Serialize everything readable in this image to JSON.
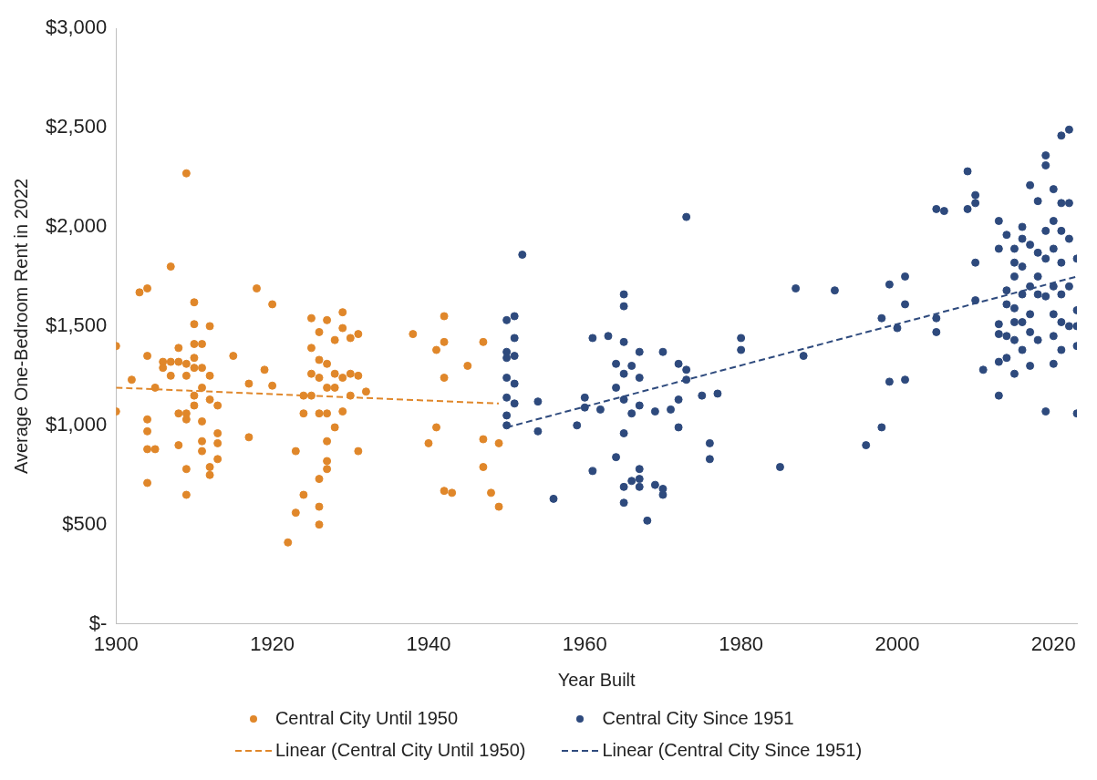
{
  "chart_data": {
    "type": "scatter",
    "xlabel": "Year Built",
    "ylabel": "Average One-Bedroom Rent in 2022",
    "xlim": [
      1900,
      2023
    ],
    "xticks": [
      1900,
      1920,
      1940,
      1960,
      1980,
      2000,
      2020
    ],
    "ylim": [
      0,
      3000
    ],
    "yticks": [
      {
        "value": 0,
        "label": "$-"
      },
      {
        "value": 500,
        "label": "$500"
      },
      {
        "value": 1000,
        "label": "$1,000"
      },
      {
        "value": 1500,
        "label": "$1,500"
      },
      {
        "value": 2000,
        "label": "$2,000"
      },
      {
        "value": 2500,
        "label": "$2,500"
      },
      {
        "value": 3000,
        "label": "$3,000"
      }
    ],
    "grid": false,
    "legend": "bottom",
    "marker": "circle",
    "series": [
      {
        "name": "Central City Until 1950",
        "color": "#e0872a",
        "x": [
          1900,
          1900,
          1902,
          1903,
          1904,
          1904,
          1904,
          1904,
          1904,
          1904,
          1905,
          1905,
          1906,
          1906,
          1907,
          1907,
          1907,
          1908,
          1908,
          1908,
          1908,
          1909,
          1909,
          1909,
          1909,
          1909,
          1909,
          1909,
          1910,
          1910,
          1910,
          1910,
          1910,
          1910,
          1910,
          1911,
          1911,
          1911,
          1911,
          1911,
          1911,
          1912,
          1912,
          1912,
          1912,
          1912,
          1913,
          1913,
          1913,
          1913,
          1915,
          1917,
          1917,
          1918,
          1919,
          1920,
          1920,
          1922,
          1923,
          1923,
          1924,
          1924,
          1924,
          1925,
          1925,
          1925,
          1925,
          1926,
          1926,
          1926,
          1926,
          1926,
          1926,
          1926,
          1927,
          1927,
          1927,
          1927,
          1927,
          1927,
          1927,
          1928,
          1928,
          1928,
          1928,
          1929,
          1929,
          1929,
          1929,
          1930,
          1930,
          1930,
          1931,
          1931,
          1931,
          1932,
          1938,
          1940,
          1941,
          1941,
          1942,
          1942,
          1942,
          1942,
          1943,
          1945,
          1947,
          1947,
          1947,
          1948,
          1949,
          1949
        ],
        "values": [
          1400,
          1070,
          1230,
          1670,
          1690,
          1350,
          1030,
          970,
          880,
          710,
          1190,
          880,
          1320,
          1290,
          1800,
          1320,
          1250,
          1390,
          1320,
          1060,
          900,
          2270,
          1310,
          1250,
          1060,
          1030,
          780,
          650,
          1620,
          1510,
          1410,
          1340,
          1290,
          1150,
          1100,
          1410,
          1290,
          1190,
          1020,
          920,
          870,
          1500,
          1250,
          1130,
          790,
          750,
          1100,
          960,
          910,
          830,
          1350,
          940,
          1210,
          1690,
          1280,
          1610,
          1200,
          410,
          870,
          560,
          1150,
          1060,
          650,
          1540,
          1390,
          1260,
          1150,
          1470,
          1330,
          1240,
          1060,
          730,
          590,
          500,
          1530,
          1310,
          1190,
          1060,
          920,
          820,
          780,
          1430,
          1260,
          1190,
          990,
          1570,
          1490,
          1240,
          1070,
          1440,
          1260,
          1150,
          1460,
          1250,
          870,
          1170,
          1460,
          910,
          1380,
          990,
          1550,
          1420,
          1240,
          670,
          660,
          1300,
          1420,
          930,
          790,
          660,
          910,
          590
        ]
      },
      {
        "name": "Central City Since 1951",
        "color": "#2e4a7d",
        "x": [
          1950,
          1950,
          1950,
          1950,
          1950,
          1950,
          1950,
          1951,
          1951,
          1951,
          1951,
          1951,
          1952,
          1954,
          1954,
          1956,
          1959,
          1960,
          1960,
          1961,
          1961,
          1962,
          1963,
          1964,
          1964,
          1964,
          1965,
          1965,
          1965,
          1965,
          1965,
          1965,
          1965,
          1965,
          1966,
          1966,
          1966,
          1967,
          1967,
          1967,
          1967,
          1967,
          1967,
          1968,
          1969,
          1969,
          1970,
          1970,
          1970,
          1971,
          1972,
          1972,
          1972,
          1973,
          1973,
          1973,
          1975,
          1976,
          1976,
          1977,
          1980,
          1980,
          1985,
          1987,
          1988,
          1992,
          1996,
          1998,
          1998,
          1999,
          1999,
          2000,
          2001,
          2001,
          2001,
          2005,
          2005,
          2005,
          2006,
          2009,
          2009,
          2010,
          2010,
          2010,
          2010,
          2011,
          2013,
          2013,
          2013,
          2013,
          2013,
          2013,
          2014,
          2014,
          2014,
          2014,
          2014,
          2015,
          2015,
          2015,
          2015,
          2015,
          2015,
          2015,
          2016,
          2016,
          2016,
          2016,
          2016,
          2016,
          2017,
          2017,
          2017,
          2017,
          2017,
          2017,
          2018,
          2018,
          2018,
          2018,
          2018,
          2019,
          2019,
          2019,
          2019,
          2019,
          2019,
          2020,
          2020,
          2020,
          2020,
          2020,
          2020,
          2020,
          2021,
          2021,
          2021,
          2021,
          2021,
          2021,
          2021,
          2022,
          2022,
          2022,
          2022,
          2022,
          2023,
          2023,
          2023,
          2023,
          2023
        ],
        "values": [
          1530,
          1370,
          1340,
          1240,
          1140,
          1050,
          1000,
          1550,
          1440,
          1350,
          1210,
          1110,
          1860,
          1120,
          970,
          630,
          1000,
          1140,
          1090,
          1440,
          770,
          1080,
          1450,
          1310,
          1190,
          840,
          1420,
          1130,
          960,
          1660,
          1600,
          1260,
          690,
          610,
          1300,
          1060,
          720,
          1370,
          1240,
          1100,
          780,
          730,
          690,
          520,
          1070,
          700,
          1370,
          680,
          650,
          1080,
          1310,
          1130,
          990,
          1280,
          1230,
          2050,
          1150,
          910,
          830,
          1160,
          1440,
          1380,
          790,
          1690,
          1350,
          1680,
          900,
          1540,
          990,
          1710,
          1220,
          1490,
          1750,
          1610,
          1230,
          1540,
          1470,
          2090,
          2080,
          2280,
          2090,
          2160,
          2120,
          1820,
          1630,
          1280,
          2030,
          1890,
          1510,
          1460,
          1320,
          1150,
          1960,
          1680,
          1610,
          1450,
          1340,
          1890,
          1820,
          1750,
          1590,
          1520,
          1430,
          1260,
          2000,
          1940,
          1800,
          1660,
          1520,
          1380,
          2210,
          1910,
          1700,
          1560,
          1470,
          1300,
          2130,
          1870,
          1750,
          1660,
          1430,
          2360,
          2310,
          1980,
          1840,
          1650,
          1070,
          2190,
          2030,
          1890,
          1700,
          1560,
          1450,
          1310,
          2460,
          2120,
          1980,
          1820,
          1660,
          1520,
          1380,
          2490,
          2120,
          1940,
          1700,
          1500,
          1840,
          1580,
          1500,
          1400,
          1060
        ]
      },
      {
        "name": "Linear (Central City Until 1950)",
        "type": "line",
        "line_style": "dashed",
        "marker": "none",
        "color": "#e0872a",
        "x": [
          1900,
          1949
        ],
        "values": [
          1190,
          1110
        ]
      },
      {
        "name": "Linear (Central City Since 1951)",
        "type": "line",
        "line_style": "dashed",
        "marker": "none",
        "color": "#2e4a7d",
        "x": [
          1950,
          2023
        ],
        "values": [
          990,
          1750
        ]
      }
    ]
  }
}
